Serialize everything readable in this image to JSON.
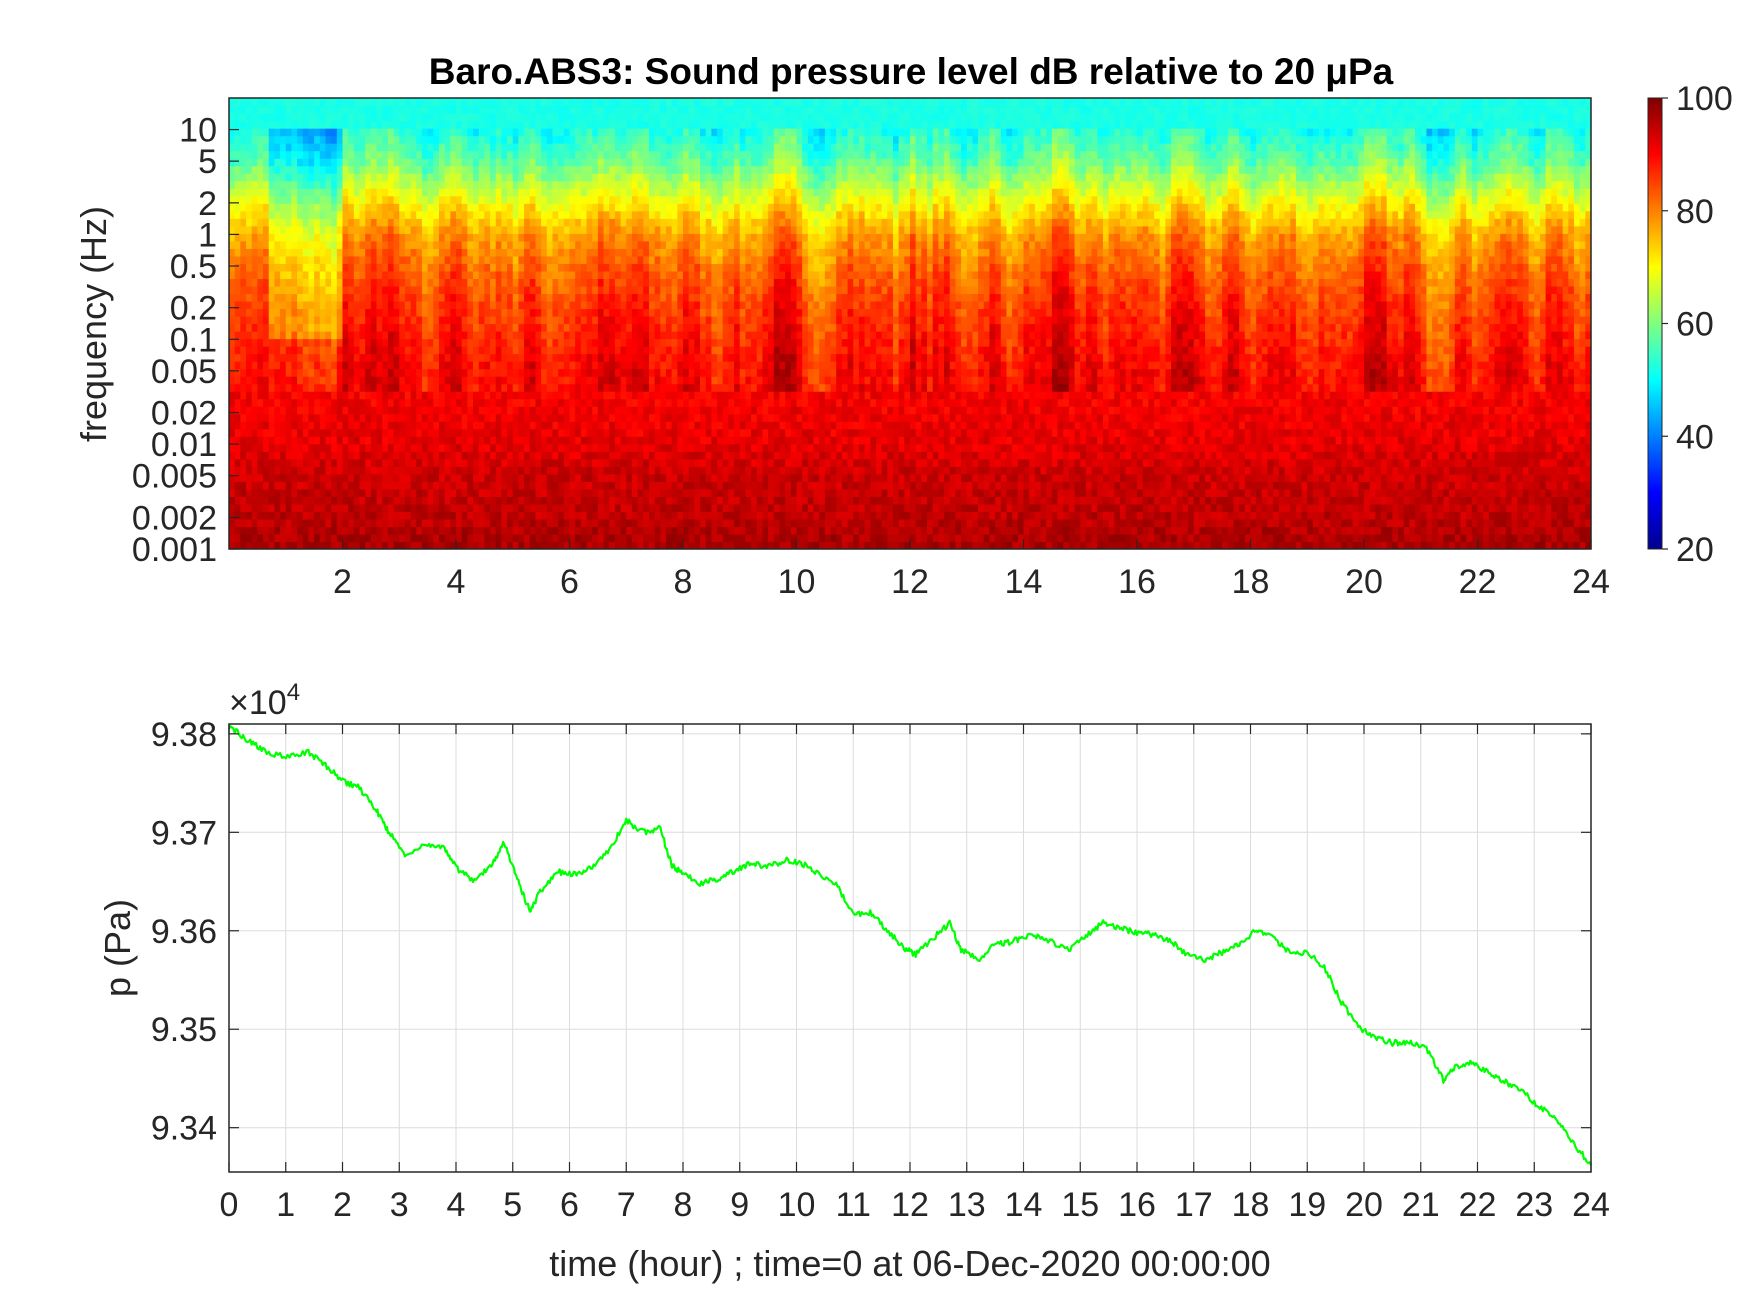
{
  "figure": {
    "title": "Baro.ABS3: Sound pressure level dB relative to 20 μPa"
  },
  "chart_data": [
    {
      "type": "heatmap",
      "title": "Baro.ABS3: Sound pressure level dB relative to 20 μPa",
      "xlabel": "",
      "ylabel": "frequency (Hz)",
      "xlim": [
        0,
        24
      ],
      "x_ticks": [
        "2",
        "4",
        "6",
        "8",
        "10",
        "12",
        "14",
        "16",
        "18",
        "20",
        "22",
        "24"
      ],
      "y_scale": "log",
      "ylim": [
        0.001,
        20
      ],
      "y_ticks": [
        {
          "value": 10,
          "label": "10"
        },
        {
          "value": 5,
          "label": "5"
        },
        {
          "value": 2,
          "label": "2"
        },
        {
          "value": 1,
          "label": "1"
        },
        {
          "value": 0.5,
          "label": "0.5"
        },
        {
          "value": 0.2,
          "label": "0.2"
        },
        {
          "value": 0.1,
          "label": "0.1"
        },
        {
          "value": 0.05,
          "label": "0.05"
        },
        {
          "value": 0.02,
          "label": "0.02"
        },
        {
          "value": 0.01,
          "label": "0.01"
        },
        {
          "value": 0.005,
          "label": "0.005"
        },
        {
          "value": 0.002,
          "label": "0.002"
        },
        {
          "value": 0.001,
          "label": "0.001"
        }
      ],
      "colorbar": {
        "range": [
          20,
          100
        ],
        "ticks": [
          "20",
          "40",
          "60",
          "80",
          "100"
        ],
        "colormap": "jet"
      },
      "level_profile": {
        "description_free_values": true,
        "freq_hz": [
          20,
          10,
          5,
          2,
          1,
          0.5,
          0.2,
          0.1,
          0.05,
          0.02,
          0.01,
          0.005,
          0.002,
          0.001
        ],
        "typical_db": [
          52,
          52,
          58,
          70,
          78,
          82,
          86,
          88,
          90,
          91,
          92,
          94,
          95,
          97
        ]
      }
    },
    {
      "type": "line",
      "title": "",
      "xlabel": "time (hour) ; time=0 at 06-Dec-2020 00:00:00",
      "ylabel": "p (Pa)",
      "y_multiplier": "×10^4",
      "y_multiplier_base": "×10",
      "y_multiplier_exp": "4",
      "xlim": [
        0,
        24
      ],
      "ylim": [
        9.3355,
        9.381
      ],
      "x_ticks": [
        "0",
        "1",
        "2",
        "3",
        "4",
        "5",
        "6",
        "7",
        "8",
        "9",
        "10",
        "11",
        "12",
        "13",
        "14",
        "15",
        "16",
        "17",
        "18",
        "19",
        "20",
        "21",
        "22",
        "23",
        "24"
      ],
      "y_ticks": [
        "9.34",
        "9.35",
        "9.36",
        "9.37",
        "9.38"
      ],
      "grid": true,
      "series": [
        {
          "color": "#00ff00",
          "x": [
            0,
            0.3,
            0.6,
            1.0,
            1.4,
            1.7,
            2.0,
            2.3,
            2.6,
            2.8,
            3.1,
            3.5,
            3.8,
            4.0,
            4.3,
            4.6,
            4.85,
            5.1,
            5.3,
            5.5,
            5.8,
            6.1,
            6.4,
            6.7,
            7.0,
            7.3,
            7.6,
            7.8,
            8.0,
            8.3,
            8.6,
            8.9,
            9.2,
            9.5,
            9.8,
            10.1,
            10.4,
            10.7,
            11.0,
            11.3,
            11.6,
            11.9,
            12.1,
            12.4,
            12.7,
            12.9,
            13.2,
            13.5,
            13.8,
            14.1,
            14.4,
            14.8,
            15.1,
            15.4,
            15.7,
            16.0,
            16.3,
            16.6,
            16.9,
            17.2,
            17.5,
            17.8,
            18.1,
            18.4,
            18.7,
            19.0,
            19.3,
            19.6,
            19.9,
            20.2,
            20.5,
            20.8,
            21.1,
            21.4,
            21.6,
            21.9,
            22.2,
            22.5,
            22.8,
            23.1,
            23.4,
            23.7,
            24.0
          ],
          "y": [
            9.3808,
            9.3795,
            9.3783,
            9.3776,
            9.3781,
            9.3768,
            9.3752,
            9.3745,
            9.3722,
            9.3702,
            9.3677,
            9.3688,
            9.3684,
            9.3664,
            9.3652,
            9.3664,
            9.369,
            9.365,
            9.362,
            9.3641,
            9.366,
            9.3657,
            9.3665,
            9.3682,
            9.3712,
            9.37,
            9.3704,
            9.3666,
            9.3658,
            9.3648,
            9.3652,
            9.3661,
            9.3668,
            9.3665,
            9.3672,
            9.3668,
            9.3658,
            9.3647,
            9.3616,
            9.3618,
            9.3601,
            9.3582,
            9.3576,
            9.3592,
            9.3608,
            9.3581,
            9.357,
            9.3586,
            9.3589,
            9.3596,
            9.3592,
            9.358,
            9.3594,
            9.3608,
            9.3603,
            9.3598,
            9.3596,
            9.3589,
            9.3575,
            9.3571,
            9.3578,
            9.3587,
            9.36,
            9.3593,
            9.3578,
            9.3578,
            9.3563,
            9.3528,
            9.3502,
            9.3492,
            9.3486,
            9.3487,
            9.348,
            9.3448,
            9.3462,
            9.3467,
            9.3456,
            9.3446,
            9.3436,
            9.3421,
            9.3407,
            9.3383,
            9.3362
          ]
        }
      ]
    }
  ]
}
